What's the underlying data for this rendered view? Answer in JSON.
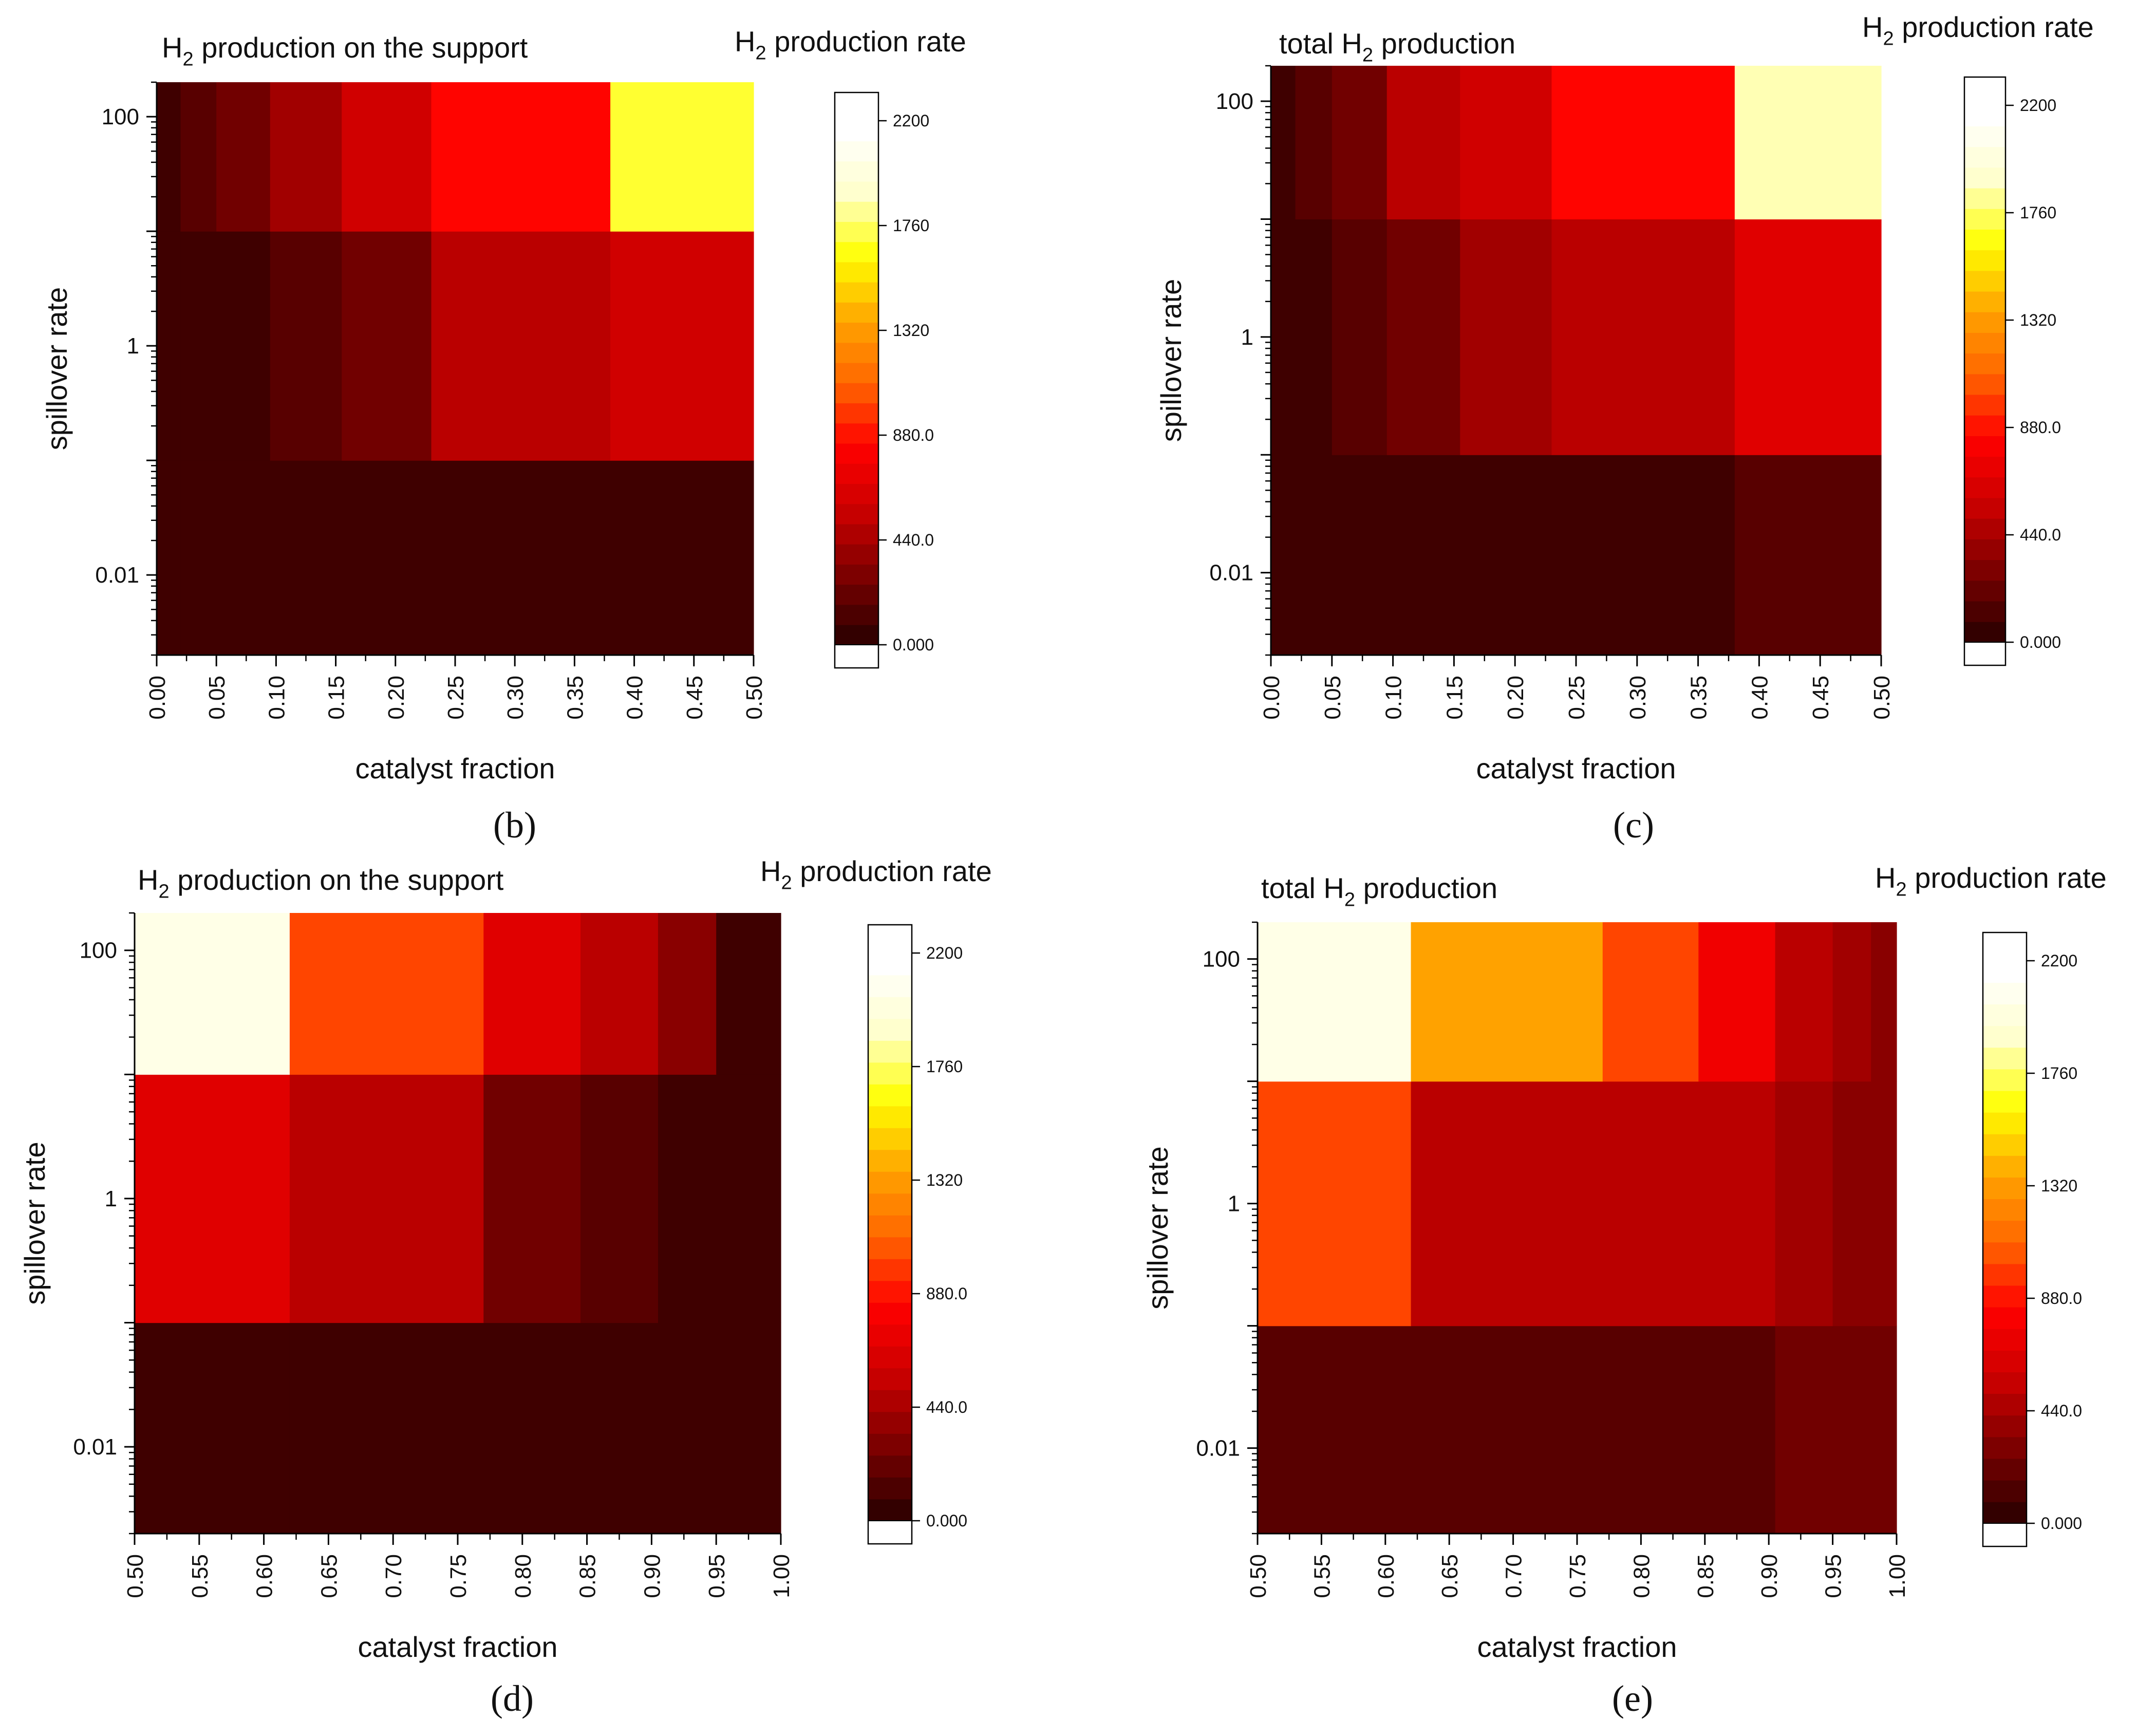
{
  "figure": {
    "panel_labels": [
      "(b)",
      "(c)",
      "(d)",
      "(e)"
    ]
  },
  "colorbar": {
    "tick_labels": [
      "2200",
      "1760",
      "1320",
      "880.0",
      "440.0",
      "0.000"
    ],
    "tick_values": [
      2200,
      1760,
      1320,
      880,
      440,
      0
    ],
    "min": 0,
    "max": 2200,
    "stops": [
      "#330000",
      "#800000",
      "#cc0000",
      "#ff0000",
      "#ff6600",
      "#ffa500",
      "#ffff00",
      "#ffffcc",
      "#ffffff"
    ]
  },
  "chart_data": [
    {
      "type": "heatmap",
      "panel": "(b)",
      "title": "H2 production on the support",
      "title_main": "H",
      "title_sub": "2",
      "title_rest": " production on the support",
      "colorbar_title_main": "H",
      "colorbar_title_sub": "2",
      "colorbar_title_rest": " production rate",
      "xlabel": "catalyst fraction",
      "ylabel": "spillover rate",
      "x_ticks": [
        "0.00",
        "0.05",
        "0.10",
        "0.15",
        "0.20",
        "0.25",
        "0.30",
        "0.35",
        "0.40",
        "0.45",
        "0.50"
      ],
      "xlim": [
        0.0,
        0.5
      ],
      "x_edges": [
        0.0,
        0.02,
        0.05,
        0.095,
        0.155,
        0.23,
        0.38,
        0.5
      ],
      "y_ticks": [
        "100",
        "1",
        "0.01"
      ],
      "y_edges": [
        0.002,
        0.1,
        10,
        200
      ],
      "values": [
        [
          15,
          15,
          15,
          15,
          15,
          15,
          15
        ],
        [
          15,
          20,
          60,
          110,
          220,
          480,
          600
        ],
        [
          80,
          90,
          220,
          390,
          560,
          820,
          1700
        ]
      ]
    },
    {
      "type": "heatmap",
      "panel": "(c)",
      "title": "total H2 production",
      "title_main": "total H",
      "title_sub": "2",
      "title_rest": " production",
      "colorbar_title_main": "H",
      "colorbar_title_sub": "2",
      "colorbar_title_rest": " production rate",
      "xlabel": "catalyst fraction",
      "ylabel": "spillover rate",
      "x_ticks": [
        "0.00",
        "0.05",
        "0.10",
        "0.15",
        "0.20",
        "0.25",
        "0.30",
        "0.35",
        "0.40",
        "0.45",
        "0.50"
      ],
      "xlim": [
        0.0,
        0.5
      ],
      "x_edges": [
        0.0,
        0.02,
        0.05,
        0.095,
        0.155,
        0.23,
        0.38,
        0.5
      ],
      "y_ticks": [
        "100",
        "1",
        "0.01"
      ],
      "y_edges": [
        0.002,
        0.1,
        10,
        200
      ],
      "values": [
        [
          15,
          15,
          15,
          15,
          15,
          60,
          150
        ],
        [
          15,
          30,
          90,
          230,
          370,
          470,
          700
        ],
        [
          30,
          90,
          250,
          500,
          600,
          850,
          1850
        ]
      ]
    },
    {
      "type": "heatmap",
      "panel": "(d)",
      "title": "H2 production on the support",
      "title_main": "H",
      "title_sub": "2",
      "title_rest": " production on the support",
      "colorbar_title_main": "H",
      "colorbar_title_sub": "2",
      "colorbar_title_rest": " production rate",
      "xlabel": "catalyst fraction",
      "ylabel": "spillover rate",
      "x_ticks": [
        "0.50",
        "0.55",
        "0.60",
        "0.65",
        "0.70",
        "0.75",
        "0.80",
        "0.85",
        "0.90",
        "0.95",
        "1.00"
      ],
      "xlim": [
        0.5,
        1.0
      ],
      "x_edges": [
        0.5,
        0.62,
        0.77,
        0.845,
        0.905,
        0.95,
        0.98,
        1.0
      ],
      "y_ticks": [
        "100",
        "1",
        "0.01"
      ],
      "y_edges": [
        0.002,
        0.1,
        10,
        200
      ],
      "values": [
        [
          15,
          15,
          15,
          15,
          15,
          15,
          15
        ],
        [
          700,
          460,
          250,
          160,
          70,
          15,
          15
        ],
        [
          2080,
          1050,
          690,
          460,
          270,
          80,
          15
        ]
      ]
    },
    {
      "type": "heatmap",
      "panel": "(e)",
      "title": "total H2 production",
      "title_main": "total H",
      "title_sub": "2",
      "title_rest": " production",
      "colorbar_title_main": "H",
      "colorbar_title_sub": "2",
      "colorbar_title_rest": " production rate",
      "xlabel": "catalyst fraction",
      "ylabel": "spillover rate",
      "x_ticks": [
        "0.50",
        "0.55",
        "0.60",
        "0.65",
        "0.70",
        "0.75",
        "0.80",
        "0.85",
        "0.90",
        "0.95",
        "1.00"
      ],
      "xlim": [
        0.5,
        1.0
      ],
      "x_edges": [
        0.5,
        0.62,
        0.77,
        0.845,
        0.905,
        0.95,
        0.98,
        1.0
      ],
      "y_ticks": [
        "100",
        "1",
        "0.01"
      ],
      "y_edges": [
        0.002,
        0.1,
        10,
        200
      ],
      "values": [
        [
          150,
          170,
          170,
          170,
          180,
          210,
          210
        ],
        [
          1000,
          520,
          500,
          460,
          380,
          280,
          280
        ],
        [
          2100,
          1380,
          1000,
          720,
          500,
          420,
          280
        ]
      ]
    }
  ]
}
